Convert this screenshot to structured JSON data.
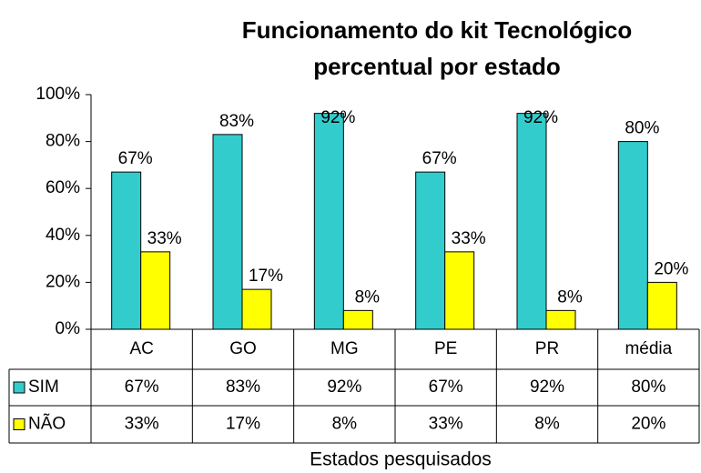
{
  "chart_data": {
    "type": "bar",
    "title": "Funcionamento do kit Tecnológico",
    "subtitle": "percentual por estado",
    "x_label": "Estados pesquisados",
    "categories": [
      "AC",
      "GO",
      "MG",
      "PE",
      "PR",
      "média"
    ],
    "series": [
      {
        "name": "SIM",
        "color": "#33cccc",
        "values": [
          67,
          83,
          92,
          67,
          92,
          80
        ],
        "value_labels": [
          "67%",
          "83%",
          "92%",
          "67%",
          "92%",
          "80%"
        ]
      },
      {
        "name": "NÃO",
        "color": "#ffff00",
        "values": [
          33,
          17,
          8,
          33,
          8,
          20
        ],
        "value_labels": [
          "33%",
          "17%",
          "8%",
          "33%",
          "8%",
          "20%"
        ]
      }
    ],
    "ylim": [
      0,
      100
    ],
    "yticks": [
      {
        "value": 0,
        "label": "0%"
      },
      {
        "value": 20,
        "label": "20%"
      },
      {
        "value": 40,
        "label": "40%"
      },
      {
        "value": 60,
        "label": "60%"
      },
      {
        "value": 80,
        "label": "80%"
      },
      {
        "value": 100,
        "label": "100%"
      }
    ],
    "data_table": true
  }
}
